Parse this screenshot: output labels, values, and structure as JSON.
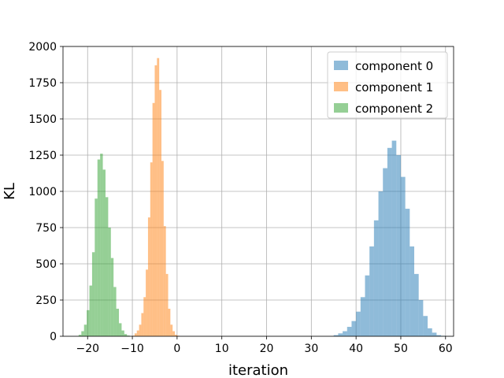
{
  "chart_data": {
    "type": "histogram",
    "title": "",
    "xlabel": "iteration",
    "ylabel": "KL",
    "xlim": [
      -25.5,
      61.8
    ],
    "ylim": [
      0,
      2000
    ],
    "xticks": [
      -20,
      -10,
      0,
      10,
      20,
      30,
      40,
      50,
      60
    ],
    "yticks": [
      0,
      250,
      500,
      750,
      1000,
      1250,
      1500,
      1750,
      2000
    ],
    "grid": true,
    "legend_position": "top-right",
    "bar_alpha": 0.5,
    "series": [
      {
        "name": "component 0",
        "color": "#1f77b4",
        "bin_start": 35.0,
        "bin_width": 1.0,
        "counts": [
          8,
          20,
          35,
          65,
          105,
          170,
          270,
          420,
          620,
          800,
          1000,
          1160,
          1300,
          1350,
          1250,
          1100,
          880,
          620,
          430,
          250,
          140,
          55,
          25,
          8,
          3
        ]
      },
      {
        "name": "component 1",
        "color": "#ff7f0e",
        "bin_start": -10.0,
        "bin_width": 0.5,
        "counts": [
          4,
          20,
          40,
          80,
          160,
          270,
          460,
          820,
          1200,
          1610,
          1870,
          1920,
          1700,
          1210,
          760,
          430,
          190,
          80,
          35,
          10,
          4
        ]
      },
      {
        "name": "component 2",
        "color": "#2ca02c",
        "bin_start": -22.0,
        "bin_width": 0.6,
        "counts": [
          10,
          35,
          80,
          180,
          350,
          580,
          950,
          1220,
          1260,
          1150,
          960,
          750,
          540,
          340,
          190,
          90,
          40,
          15,
          5
        ]
      }
    ]
  }
}
